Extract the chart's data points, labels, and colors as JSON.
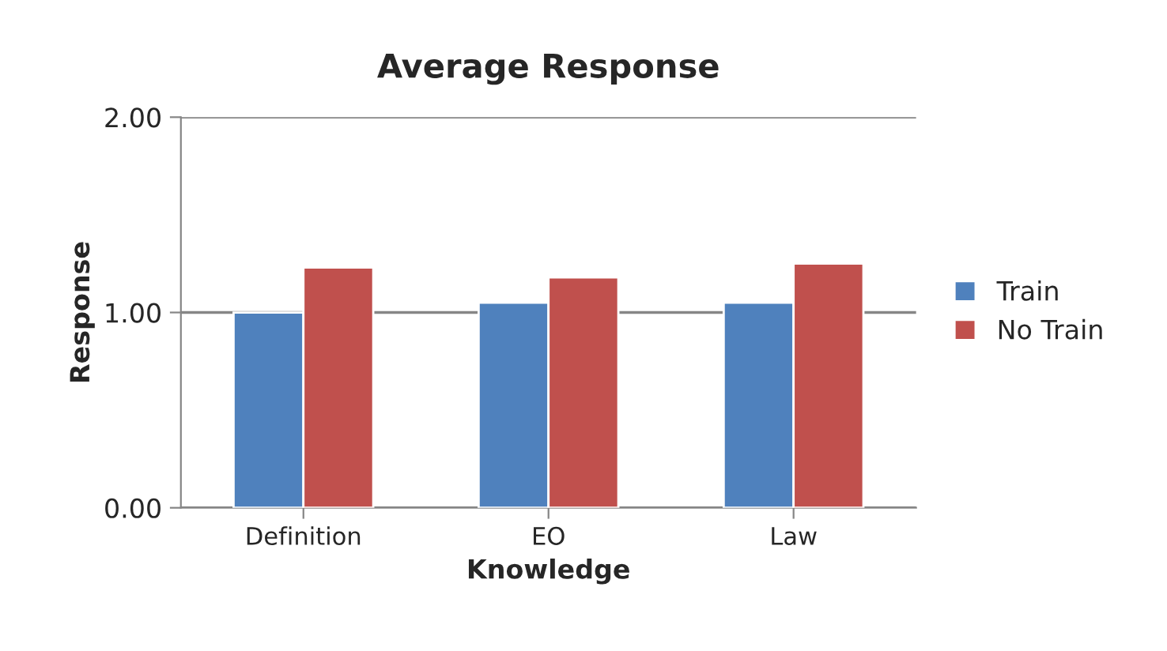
{
  "chart_data": {
    "type": "bar",
    "title": "Average Response",
    "xlabel": "Knowledge",
    "ylabel": "Response",
    "categories": [
      "Definition",
      "EO",
      "Law"
    ],
    "series": [
      {
        "name": "Train",
        "color": "#4f81bd",
        "values": [
          1.0,
          1.05,
          1.05
        ]
      },
      {
        "name": "No Train",
        "color": "#c0504d",
        "values": [
          1.23,
          1.18,
          1.25
        ]
      }
    ],
    "ylim": [
      0,
      2
    ],
    "yticks": [
      {
        "value": 0,
        "label": "0.00"
      },
      {
        "value": 1,
        "label": "1.00"
      },
      {
        "value": 2,
        "label": "2.00"
      }
    ],
    "grid": "y",
    "legend": "right"
  }
}
